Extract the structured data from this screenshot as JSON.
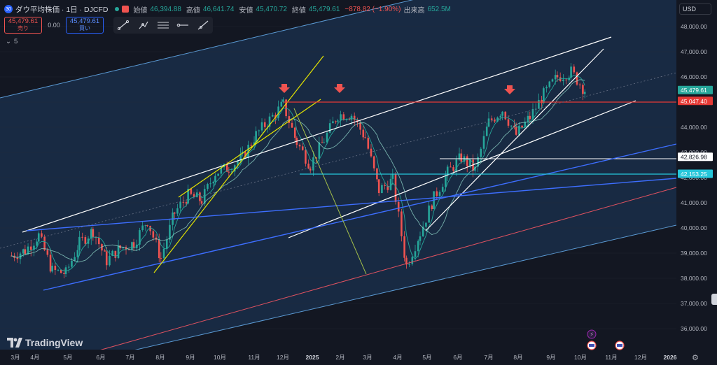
{
  "header": {
    "symbol_icon": "dji-icon",
    "title": "ダウ平均株価 · 1日 · DJCFD",
    "ohlc": [
      {
        "label": "始値",
        "value": "46,394.88"
      },
      {
        "label": "高値",
        "value": "46,641.74"
      },
      {
        "label": "安値",
        "value": "45,470.72"
      },
      {
        "label": "終値",
        "value": "45,479.61"
      }
    ],
    "change": "−878.82 (−1.90%)",
    "volume_label": "出来高",
    "volume_value": "652.5M"
  },
  "trade": {
    "sell_price": "45,479.61",
    "sell_label": "売り",
    "spread": "0.00",
    "buy_price": "45,479.61",
    "buy_label": "買い"
  },
  "drawing_tools": [
    "trend-line-icon",
    "path-icon",
    "fib-icon",
    "horizontal-ray-icon",
    "extended-line-icon"
  ],
  "indicator_count": "5",
  "currency": "USD",
  "brand": "TradingView",
  "price_labels": [
    {
      "value": "45,479.61",
      "price": 45479.61,
      "color": "#26a69a"
    },
    {
      "value": "45,047.40",
      "price": 45047.4,
      "color": "#e53935"
    },
    {
      "value": "42,826.98",
      "price": 42826.98,
      "color": "#ffffff"
    },
    {
      "value": "42,153.25",
      "price": 42153.25,
      "color": "#26c6da"
    }
  ],
  "chart_data": {
    "type": "line",
    "ylim": [
      35500,
      48600
    ],
    "y_ticks": [
      {
        "value": 36000,
        "label": "36,000.00"
      },
      {
        "value": 37000,
        "label": "37,000.00"
      },
      {
        "value": 38000,
        "label": "38,000.00"
      },
      {
        "value": 39000,
        "label": "39,000.00"
      },
      {
        "value": 40000,
        "label": "40,000.00"
      },
      {
        "value": 41000,
        "label": "41,000.00"
      },
      {
        "value": 42000,
        "label": "42,000.00"
      },
      {
        "value": 43000,
        "label": "43,000.00"
      },
      {
        "value": 44000,
        "label": "44,000.00"
      },
      {
        "value": 45000,
        "label": "45,000.00"
      },
      {
        "value": 46000,
        "label": "46,000.00"
      },
      {
        "value": 47000,
        "label": "47,000.00"
      },
      {
        "value": 48000,
        "label": "48,000.00"
      }
    ],
    "x_ticks": [
      "3月",
      "4月",
      "5月",
      "6月",
      "7月",
      "8月",
      "9月",
      "10月",
      "11月",
      "12月",
      "2025",
      "2月",
      "3月",
      "4月",
      "5月",
      "6月",
      "7月",
      "8月",
      "9月",
      "10月",
      "11月",
      "12月",
      "2026"
    ],
    "x_ticks_bold": [
      "2025",
      "2026"
    ],
    "series": [
      {
        "type": "candlestick",
        "x": [
          "2024-02-26",
          "2024-03-11",
          "2024-03-25",
          "2024-04-08",
          "2024-04-22",
          "2024-05-06",
          "2024-05-20",
          "2024-06-03",
          "2024-06-17",
          "2024-07-01",
          "2024-07-15",
          "2024-07-29",
          "2024-08-12",
          "2024-08-26",
          "2024-09-09",
          "2024-09-23",
          "2024-10-07",
          "2024-10-21",
          "2024-11-04",
          "2024-11-18",
          "2024-12-02",
          "2024-12-16",
          "2024-12-30",
          "2025-01-13",
          "2025-01-27",
          "2025-02-10",
          "2025-02-24",
          "2025-03-10",
          "2025-03-24",
          "2025-04-07",
          "2025-04-21",
          "2025-05-05",
          "2025-05-19",
          "2025-06-02",
          "2025-06-16",
          "2025-06-30",
          "2025-07-14",
          "2025-07-28",
          "2025-08-11",
          "2025-08-25",
          "2025-09-08",
          "2025-09-22",
          "2025-10-06"
        ],
        "close": [
          38900,
          39100,
          39700,
          38300,
          38200,
          39400,
          39900,
          38700,
          39200,
          39400,
          40300,
          38800,
          40600,
          41300,
          41100,
          42200,
          42400,
          42800,
          43700,
          44300,
          44900,
          43400,
          42500,
          43500,
          44500,
          44500,
          43600,
          41500,
          41900,
          38500,
          39800,
          41200,
          42200,
          42800,
          42300,
          44200,
          44700,
          43700,
          44400,
          45300,
          46000,
          46200,
          45480
        ]
      }
    ]
  }
}
